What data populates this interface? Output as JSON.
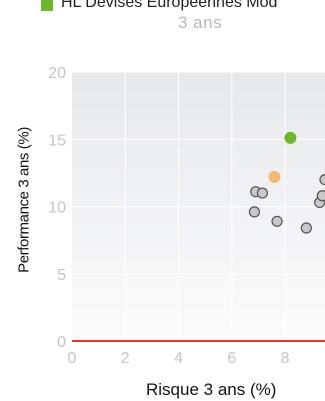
{
  "legend": {
    "label": "HL Devises Europeennes Mod",
    "color": "#6bb82f"
  },
  "chart_data": {
    "type": "scatter",
    "title": "3 ans",
    "xlabel": "Risque 3 ans (%)",
    "ylabel": "Performance 3 ans (%)",
    "xlim": [
      0,
      9.5
    ],
    "ylim": [
      0,
      20
    ],
    "xticks": [
      0,
      2,
      4,
      6,
      8
    ],
    "yticks": [
      0,
      5,
      10,
      15,
      20
    ],
    "grid": true,
    "series": [
      {
        "name": "HL Devises Europeennes Mod",
        "color": "#6bb82f",
        "points": [
          [
            8.2,
            15.1
          ]
        ]
      },
      {
        "color": "#f5b873",
        "points": [
          [
            7.6,
            12.2
          ]
        ]
      },
      {
        "color": "#c8c8c8",
        "points": [
          [
            6.9,
            11.1
          ],
          [
            7.15,
            11.0
          ],
          [
            6.85,
            9.6
          ],
          [
            7.7,
            8.9
          ],
          [
            8.8,
            8.4
          ],
          [
            9.3,
            10.3
          ],
          [
            9.4,
            10.8
          ],
          [
            9.5,
            12.0
          ]
        ]
      }
    ],
    "zero_line_color": "#e8322b"
  }
}
